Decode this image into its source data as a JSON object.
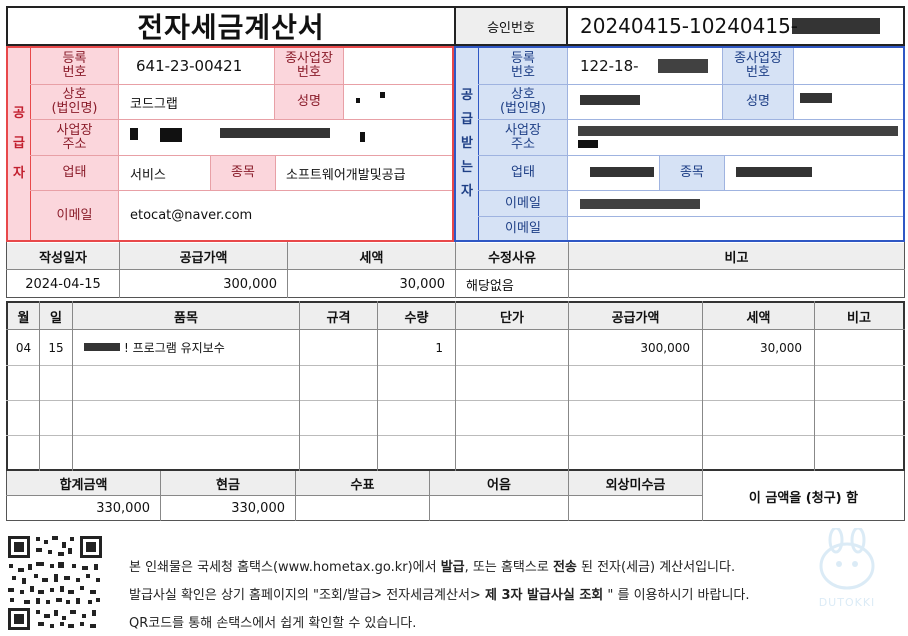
{
  "doc": {
    "title": "전자세금계산서",
    "approval_label": "승인번호",
    "approval_number": "20240415-10240415-"
  },
  "supplier": {
    "side_label": "공\n급\n자",
    "reg_label": "등록\n번호",
    "reg_number": "641-23-00421",
    "branch_label": "종사업장\n번호",
    "branch_value": "",
    "name_label": "상호\n(법인명)",
    "name_value": "코드그랩",
    "ceo_label": "성명",
    "addr_label": "사업장\n주소",
    "biz_type_label": "업태",
    "biz_type_value": "서비스",
    "item_label": "종목",
    "item_value": "소프트웨어개발및공급",
    "email_label": "이메일",
    "email_value": "etocat@naver.com"
  },
  "receiver": {
    "side_label": "공\n급\n받\n는\n자",
    "reg_label": "등록\n번호",
    "reg_number": "122-18-",
    "branch_label": "종사업장\n번호",
    "name_label": "상호\n(법인명)",
    "ceo_label": "성명",
    "addr_label": "사업장\n주소",
    "biz_type_label": "업태",
    "item_label": "종목",
    "email_label_1": "이메일",
    "email_label_2": "이메일"
  },
  "summary": {
    "headers": [
      "작성일자",
      "공급가액",
      "세액",
      "수정사유",
      "비고"
    ],
    "date": "2024-04-15",
    "supply_amount": "300,000",
    "tax_amount": "30,000",
    "reason": "해당없음",
    "note": ""
  },
  "items": {
    "headers": [
      "월",
      "일",
      "품목",
      "규격",
      "수량",
      "단가",
      "공급가액",
      "세액",
      "비고"
    ],
    "rows": [
      {
        "month": "04",
        "day": "15",
        "name": "! 프로그램 유지보수",
        "spec": "",
        "qty": "1",
        "unit": "",
        "supply": "300,000",
        "tax": "30,000",
        "note": ""
      }
    ]
  },
  "totals": {
    "headers": [
      "합계금액",
      "현금",
      "수표",
      "어음",
      "외상미수금"
    ],
    "total": "330,000",
    "cash": "330,000",
    "check": "",
    "bill": "",
    "credit": "",
    "claim_text": "이 금액을 (청구) 함"
  },
  "footer": {
    "line1_a": "본 인쇄물은 국세청 홈택스(www.hometax.go.kr)에서 ",
    "line1_b": "발급",
    "line1_c": ", 또는 홈택스로 ",
    "line1_d": "전송",
    "line1_e": " 된 전자(세금) 계산서입니다.",
    "line2_a": "발급사실 확인은 상기 홈페이지의 \"조회/발급> 전자세금계산서> ",
    "line2_b": "제 3자 발급사실 조회",
    "line2_c": " \" 를 이용하시기 바랍니다.",
    "line3": "QR코드를 통해 손택스에서 쉽게 확인할 수 있습니다.",
    "watermark": "DUTOKKI"
  },
  "colors": {
    "supplier": "#e8484a",
    "receiver": "#2f57c4",
    "pink": "#fbd6dc",
    "blue": "#d6e2f5"
  }
}
